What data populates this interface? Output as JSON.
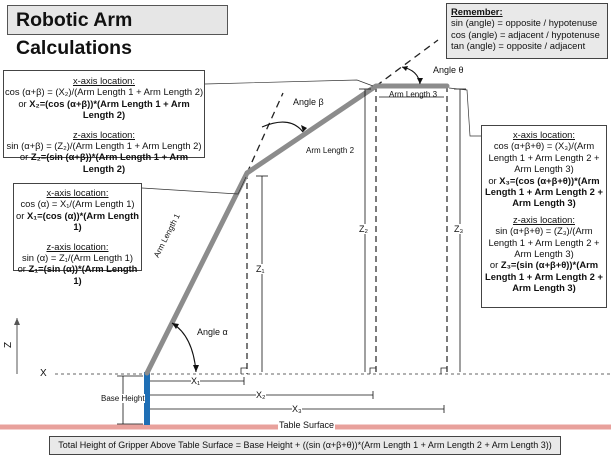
{
  "title": "Robotic Arm Calculations",
  "remember": {
    "heading": "Remember:",
    "lines": [
      "sin (angle) = opposite / hypotenuse",
      "cos (angle) = adjacent / hypotenuse",
      "tan (angle) = opposite / adjacent"
    ]
  },
  "box_link2": {
    "x_heading": "x-axis location:",
    "x_line1": "cos (α+β) = (X₂)/(Arm Length 1 + Arm Length 2)",
    "x_line2_pre": "or ",
    "x_line2_bold": "X₂=(cos (α+β))*(Arm Length 1 + Arm Length 2)",
    "z_heading": "z-axis location:",
    "z_line1": "sin (α+β) = (Z₂)/(Arm Length 1 + Arm Length 2)",
    "z_line2_pre": "or ",
    "z_line2_bold": "Z₂=(sin (α+β))*(Arm Length 1 + Arm Length 2)"
  },
  "box_link1": {
    "x_heading": "x-axis location:",
    "x_line1": "cos (α) = X₁/(Arm Length 1)",
    "x_line2_pre": "or ",
    "x_line2_bold": "X₁=(cos (α))*(Arm Length 1)",
    "z_heading": "z-axis location:",
    "z_line1": "sin (α) = Z₁/(Arm Length 1)",
    "z_line2_pre": "or ",
    "z_line2_bold": "Z₁=(sin (α))*(Arm Length 1)"
  },
  "box_link3": {
    "x_heading": "x-axis location:",
    "x_line1": "cos (α+β+θ) = (X₃)/(Arm",
    "x_line2": "Length 1 + Arm Length 2 +",
    "x_line3": "Arm Length 3)",
    "x_line4_pre": "or ",
    "x_line4_bold": "X₃=(cos (α+β+θ))*(Arm",
    "x_line5_bold": "Length 1 + Arm Length 2 +",
    "x_line6_bold": "Arm Length 3)",
    "z_heading": "z-axis location:",
    "z_line1": "sin (α+β+θ) = (Z₃)/(Arm",
    "z_line2": "Length 1 + Arm Length 2 +",
    "z_line3": "Arm Length 3)",
    "z_line4_pre": "or ",
    "z_line4_bold": "Z₃=(sin (α+β+θ))*(Arm",
    "z_line5_bold": "Length 1 + Arm Length 2 +",
    "z_line6_bold": "Arm Length 3)"
  },
  "labels": {
    "angle_alpha": "Angle α",
    "angle_beta": "Angle β",
    "angle_theta": "Angle θ",
    "arm1": "Arm Length 1",
    "arm2": "Arm Length 2",
    "arm3": "Arm Length 3",
    "z1": "Z₁",
    "z2": "Z₂",
    "z3": "Z₃",
    "x1": "X₁",
    "x2": "X₂",
    "x3": "X₃",
    "axis_x": "X",
    "axis_z": "Z",
    "base_height": "Base Height",
    "table_surface": "Table Surface"
  },
  "footer": "Total Height of Gripper Above Table Surface = Base Height + ((sin (α+β+θ))*(Arm Length 1 + Arm Length 2 + Arm Length 3))",
  "colors": {
    "arm": "#8c8c8c",
    "base": "#1f6fb5",
    "table": "#e8a19c",
    "dashed": "#222222"
  }
}
